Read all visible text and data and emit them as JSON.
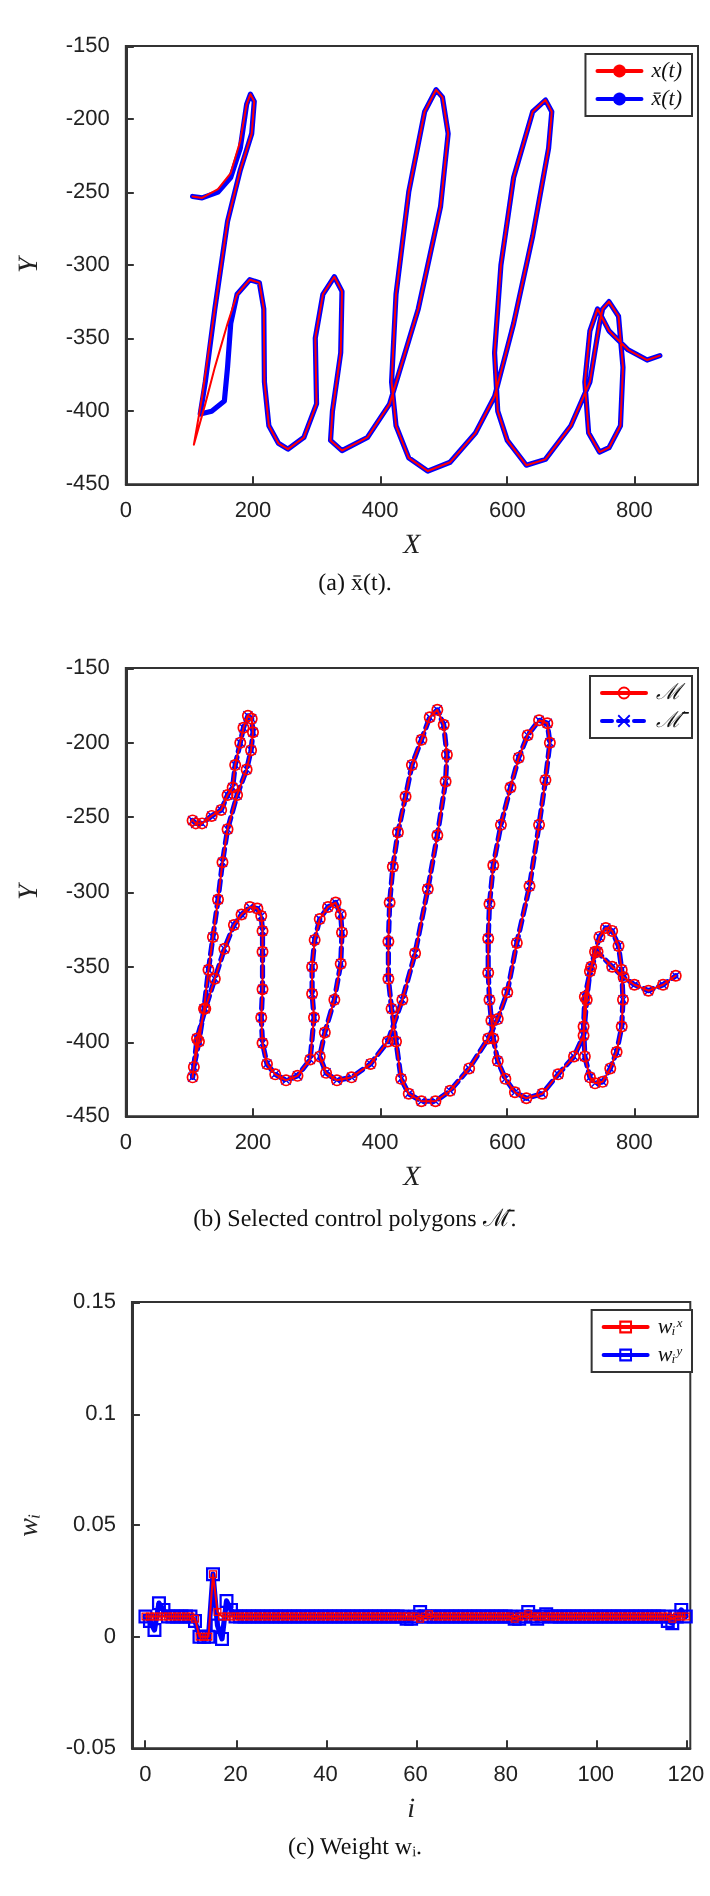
{
  "chart_data": [
    {
      "type": "line",
      "xlabel": "X",
      "ylabel": "Y",
      "annotations": [
        "(a) x̄(t)."
      ],
      "xlim": [
        0,
        900
      ],
      "xticks": [
        0,
        200,
        400,
        600,
        800
      ],
      "ylim": [
        -450,
        -150
      ],
      "yticks": [
        -450,
        -400,
        -350,
        -300,
        -250,
        -200,
        -150
      ],
      "grid": false,
      "legend": "top right",
      "marker": "none",
      "line_style": "solid",
      "series": [
        {
          "name": "x(t)",
          "color": "#ff0000",
          "x": [
            105,
            120,
            145,
            165,
            180,
            190,
            196,
            202,
            198,
            180,
            160,
            140,
            120,
            107,
            125,
            140,
            160,
            175,
            195,
            210,
            217,
            218,
            225,
            240,
            255,
            280,
            300,
            298,
            310,
            328,
            340,
            338,
            325,
            322,
            340,
            380,
            415,
            460,
            495,
            507,
            498,
            488,
            470,
            445,
            425,
            418,
            425,
            445,
            475,
            510,
            550,
            580,
            610,
            640,
            665,
            670,
            660,
            640,
            610,
            590,
            580,
            585,
            600,
            630,
            660,
            700,
            730,
            745,
            750,
            760,
            775,
            782,
            778,
            760,
            745,
            728,
            722,
            730,
            742,
            760,
            790,
            820,
            840
          ],
          "values": [
            -253,
            -254,
            -248,
            -237,
            -215,
            -190,
            -183,
            -188,
            -210,
            -235,
            -270,
            -330,
            -390,
            -423,
            -395,
            -370,
            -340,
            -320,
            -310,
            -312,
            -330,
            -380,
            -410,
            -422,
            -426,
            -418,
            -395,
            -350,
            -320,
            -308,
            -318,
            -360,
            -400,
            -420,
            -427,
            -418,
            -395,
            -330,
            -260,
            -210,
            -185,
            -180,
            -195,
            -250,
            -320,
            -380,
            -410,
            -432,
            -441,
            -435,
            -415,
            -390,
            -340,
            -280,
            -220,
            -195,
            -187,
            -195,
            -240,
            -300,
            -360,
            -400,
            -420,
            -437,
            -433,
            -410,
            -380,
            -340,
            -330,
            -325,
            -335,
            -370,
            -410,
            -425,
            -428,
            -415,
            -380,
            -345,
            -330,
            -345,
            -358,
            -365,
            -362
          ]
        },
        {
          "name": "x̄(t)",
          "color": "#0000ff",
          "x": [
            105,
            120,
            145,
            165,
            180,
            190,
            196,
            202,
            198,
            180,
            160,
            140,
            125,
            117,
            135,
            155,
            160,
            165,
            175,
            195,
            210,
            217,
            218,
            225,
            240,
            255,
            280,
            300,
            298,
            310,
            328,
            340,
            338,
            325,
            322,
            340,
            380,
            415,
            460,
            495,
            507,
            498,
            488,
            470,
            445,
            425,
            418,
            425,
            445,
            475,
            510,
            550,
            580,
            610,
            640,
            665,
            670,
            660,
            640,
            610,
            590,
            580,
            585,
            600,
            630,
            660,
            700,
            730,
            745,
            750,
            760,
            775,
            782,
            778,
            760,
            745,
            728,
            722,
            730,
            742,
            760,
            790,
            820,
            840
          ],
          "values": [
            -253,
            -254,
            -250,
            -240,
            -220,
            -190,
            -183,
            -188,
            -210,
            -235,
            -270,
            -330,
            -380,
            -402,
            -400,
            -393,
            -370,
            -340,
            -320,
            -310,
            -312,
            -330,
            -380,
            -410,
            -422,
            -426,
            -418,
            -395,
            -350,
            -320,
            -308,
            -318,
            -360,
            -400,
            -420,
            -427,
            -418,
            -395,
            -330,
            -260,
            -210,
            -185,
            -180,
            -195,
            -250,
            -320,
            -380,
            -410,
            -432,
            -441,
            -435,
            -415,
            -390,
            -340,
            -280,
            -220,
            -195,
            -187,
            -195,
            -240,
            -300,
            -360,
            -400,
            -420,
            -437,
            -433,
            -410,
            -380,
            -340,
            -330,
            -325,
            -335,
            -370,
            -410,
            -425,
            -428,
            -415,
            -380,
            -345,
            -330,
            -345,
            -358,
            -365,
            -362
          ]
        }
      ]
    },
    {
      "type": "line",
      "xlabel": "X",
      "ylabel": "Y",
      "annotations": [
        "(b) Selected control polygons ℳ̄."
      ],
      "xlim": [
        0,
        900
      ],
      "xticks": [
        0,
        200,
        400,
        600,
        800
      ],
      "ylim": [
        -450,
        -150
      ],
      "yticks": [
        -450,
        -400,
        -350,
        -300,
        -250,
        -200,
        -150
      ],
      "grid": false,
      "legend": "top right",
      "series": [
        {
          "name": "ℳ",
          "color": "#ff0000",
          "marker": "circle",
          "line_style": "solid",
          "x": [
            105,
            110,
            120,
            135,
            150,
            160,
            168,
            172,
            180,
            185,
            192,
            198,
            200,
            197,
            190,
            175,
            160,
            152,
            145,
            137,
            130,
            123,
            115,
            107,
            105,
            112,
            125,
            140,
            155,
            170,
            182,
            195,
            207,
            213,
            215,
            215,
            215,
            213,
            215,
            222,
            235,
            252,
            270,
            290,
            296,
            293,
            293,
            297,
            305,
            318,
            330,
            338,
            340,
            338,
            328,
            313,
            305,
            315,
            332,
            355,
            385,
            412,
            435,
            455,
            475,
            490,
            503,
            505,
            500,
            490,
            478,
            465,
            450,
            440,
            428,
            420,
            415,
            413,
            413,
            418,
            425,
            433,
            445,
            465,
            487,
            510,
            540,
            570,
            585,
            600,
            615,
            635,
            650,
            660,
            667,
            663,
            650,
            632,
            618,
            605,
            590,
            578,
            572,
            570,
            570,
            572,
            575,
            578,
            585,
            597,
            612,
            630,
            655,
            680,
            705,
            720,
            725,
            730,
            738,
            745,
            755,
            765,
            775,
            780,
            782,
            780,
            772,
            762,
            750,
            738,
            730,
            722,
            720,
            722,
            732,
            742,
            765,
            783,
            800,
            822,
            845,
            865
          ],
          "values": [
            -252,
            -254,
            -254,
            -249,
            -245,
            -235,
            -230,
            -215,
            -200,
            -190,
            -182,
            -184,
            -193,
            -205,
            -218,
            -235,
            -258,
            -280,
            -305,
            -330,
            -352,
            -378,
            -400,
            -417,
            -424,
            -398,
            -378,
            -358,
            -338,
            -322,
            -315,
            -310,
            -311,
            -316,
            -326,
            -340,
            -365,
            -384,
            -401,
            -415,
            -422,
            -426,
            -423,
            -412,
            -384,
            -368,
            -350,
            -332,
            -318,
            -310,
            -307,
            -315,
            -327,
            -348,
            -372,
            -394,
            -410,
            -421,
            -426,
            -424,
            -415,
            -400,
            -372,
            -341,
            -298,
            -262,
            -226,
            -208,
            -188,
            -178,
            -183,
            -198,
            -215,
            -236,
            -260,
            -283,
            -307,
            -333,
            -358,
            -378,
            -400,
            -425,
            -435,
            -440,
            -440,
            -433,
            -418,
            -398,
            -385,
            -367,
            -334,
            -296,
            -255,
            -225,
            -200,
            -187,
            -185,
            -195,
            -210,
            -230,
            -255,
            -282,
            -308,
            -331,
            -354,
            -372,
            -386,
            -398,
            -413,
            -425,
            -434,
            -438,
            -435,
            -422,
            -410,
            -396,
            -372,
            -353,
            -340,
            -330,
            -324,
            -326,
            -336,
            -352,
            -372,
            -390,
            -407,
            -418,
            -427,
            -428,
            -424,
            -410,
            -390,
            -370,
            -350,
            -340,
            -350,
            -357,
            -362,
            -366,
            -362,
            -356
          ]
        },
        {
          "name": "ℳ̄",
          "color": "#0000ff",
          "marker": "cross",
          "line_style": "dashed",
          "x": [
            105,
            110,
            120,
            135,
            150,
            160,
            168,
            172,
            180,
            185,
            192,
            198,
            200,
            197,
            190,
            175,
            160,
            152,
            145,
            137,
            130,
            123,
            115,
            107,
            105,
            112,
            125,
            140,
            155,
            170,
            182,
            195,
            207,
            213,
            215,
            215,
            215,
            213,
            215,
            222,
            235,
            252,
            270,
            290,
            296,
            293,
            293,
            297,
            305,
            318,
            330,
            338,
            340,
            338,
            328,
            313,
            305,
            315,
            332,
            355,
            385,
            412,
            435,
            455,
            475,
            490,
            503,
            505,
            500,
            490,
            478,
            465,
            450,
            440,
            428,
            420,
            415,
            413,
            413,
            418,
            425,
            433,
            445,
            465,
            487,
            510,
            540,
            570,
            585,
            600,
            615,
            635,
            650,
            660,
            667,
            663,
            650,
            632,
            618,
            605,
            590,
            578,
            572,
            570,
            570,
            572,
            575,
            578,
            585,
            597,
            612,
            630,
            655,
            680,
            705,
            720,
            725,
            730,
            738,
            745,
            755,
            765,
            775,
            780,
            782,
            780,
            772,
            762,
            750,
            738,
            730,
            722,
            720,
            722,
            732,
            742,
            765,
            783,
            800,
            822,
            845,
            865
          ],
          "values": [
            -252,
            -254,
            -254,
            -249,
            -245,
            -235,
            -230,
            -215,
            -200,
            -190,
            -182,
            -184,
            -193,
            -205,
            -218,
            -235,
            -258,
            -280,
            -305,
            -330,
            -352,
            -378,
            -400,
            -417,
            -424,
            -398,
            -378,
            -358,
            -338,
            -322,
            -315,
            -310,
            -311,
            -316,
            -326,
            -340,
            -365,
            -384,
            -401,
            -415,
            -422,
            -426,
            -423,
            -412,
            -384,
            -368,
            -350,
            -332,
            -318,
            -310,
            -307,
            -315,
            -327,
            -348,
            -372,
            -394,
            -410,
            -421,
            -426,
            -424,
            -415,
            -400,
            -372,
            -341,
            -298,
            -262,
            -226,
            -208,
            -188,
            -178,
            -183,
            -198,
            -215,
            -236,
            -260,
            -283,
            -307,
            -333,
            -358,
            -378,
            -400,
            -425,
            -435,
            -440,
            -440,
            -433,
            -418,
            -398,
            -385,
            -367,
            -334,
            -296,
            -255,
            -225,
            -200,
            -187,
            -185,
            -195,
            -210,
            -230,
            -255,
            -282,
            -308,
            -331,
            -354,
            -372,
            -386,
            -398,
            -413,
            -425,
            -434,
            -438,
            -435,
            -422,
            -410,
            -396,
            -372,
            -353,
            -340,
            -330,
            -324,
            -326,
            -336,
            -352,
            -372,
            -390,
            -407,
            -418,
            -427,
            -428,
            -424,
            -410,
            -390,
            -370,
            -350,
            -340,
            -350,
            -357,
            -362,
            -366,
            -362,
            -356
          ]
        }
      ]
    },
    {
      "type": "line",
      "xlabel": "i",
      "ylabel": "wᵢ",
      "annotations": [
        "(c) Weight wᵢ."
      ],
      "xlim": [
        -3,
        121
      ],
      "xticks": [
        0,
        20,
        40,
        60,
        80,
        100,
        120
      ],
      "ylim": [
        -0.05,
        0.15
      ],
      "yticks": [
        -0.05,
        0,
        0.05,
        0.1,
        0.15
      ],
      "grid": false,
      "legend": "top right",
      "marker": "square",
      "line_style": "solid",
      "x": [
        0,
        1,
        2,
        3,
        4,
        5,
        6,
        7,
        8,
        9,
        10,
        11,
        12,
        13,
        14,
        15,
        16,
        17,
        18,
        19,
        20,
        21,
        22,
        23,
        24,
        25,
        26,
        27,
        28,
        29,
        30,
        31,
        32,
        33,
        34,
        35,
        36,
        37,
        38,
        39,
        40,
        41,
        42,
        43,
        44,
        45,
        46,
        47,
        48,
        49,
        50,
        51,
        52,
        53,
        54,
        55,
        56,
        57,
        58,
        59,
        60,
        61,
        62,
        63,
        64,
        65,
        66,
        67,
        68,
        69,
        70,
        71,
        72,
        73,
        74,
        75,
        76,
        77,
        78,
        79,
        80,
        81,
        82,
        83,
        84,
        85,
        86,
        87,
        88,
        89,
        90,
        91,
        92,
        93,
        94,
        95,
        96,
        97,
        98,
        99,
        100,
        101,
        102,
        103,
        104,
        105,
        106,
        107,
        108,
        109,
        110,
        111,
        112,
        113,
        114,
        115,
        116,
        117,
        118,
        119,
        120
      ],
      "series": [
        {
          "name": "wᵢˣ",
          "color": "#ff0000",
          "values": [
            0.009,
            0.009,
            0.009,
            0.009,
            0.009,
            0.009,
            0.009,
            0.009,
            0.009,
            0.009,
            0.009,
            0.008,
            0,
            0,
            0,
            0.028,
            0.011,
            0.009,
            0.009,
            0.009,
            0.009,
            0.009,
            0.009,
            0.009,
            0.009,
            0.009,
            0.009,
            0.009,
            0.009,
            0.009,
            0.009,
            0.009,
            0.009,
            0.009,
            0.009,
            0.009,
            0.009,
            0.009,
            0.009,
            0.009,
            0.009,
            0.009,
            0.009,
            0.009,
            0.009,
            0.009,
            0.009,
            0.009,
            0.009,
            0.009,
            0.009,
            0.009,
            0.009,
            0.009,
            0.009,
            0.009,
            0.009,
            0.009,
            0.009,
            0.009,
            0.009,
            0.008,
            0.009,
            0.01,
            0.009,
            0.009,
            0.009,
            0.009,
            0.009,
            0.009,
            0.009,
            0.009,
            0.009,
            0.009,
            0.009,
            0.009,
            0.009,
            0.009,
            0.009,
            0.009,
            0.009,
            0.009,
            0.008,
            0.009,
            0.009,
            0.01,
            0.009,
            0.009,
            0.009,
            0.009,
            0.009,
            0.009,
            0.009,
            0.009,
            0.009,
            0.009,
            0.009,
            0.009,
            0.009,
            0.009,
            0.009,
            0.009,
            0.009,
            0.009,
            0.009,
            0.009,
            0.009,
            0.009,
            0.009,
            0.009,
            0.009,
            0.009,
            0.009,
            0.009,
            0.009,
            0.009,
            0.009,
            0.008,
            0.009,
            0.009,
            0.009
          ]
        },
        {
          "name": "wᵢʸ",
          "color": "#0000ff",
          "values": [
            0.009,
            0.007,
            0.003,
            0.015,
            0.012,
            0.009,
            0.009,
            0.009,
            0.009,
            0.009,
            0.009,
            0.007,
            0,
            0,
            0,
            0.028,
            0.005,
            -0.001,
            0.016,
            0.012,
            0.009,
            0.009,
            0.009,
            0.009,
            0.009,
            0.009,
            0.009,
            0.009,
            0.009,
            0.009,
            0.009,
            0.009,
            0.009,
            0.009,
            0.009,
            0.009,
            0.009,
            0.009,
            0.009,
            0.009,
            0.009,
            0.009,
            0.009,
            0.009,
            0.009,
            0.009,
            0.009,
            0.009,
            0.009,
            0.009,
            0.009,
            0.009,
            0.009,
            0.009,
            0.009,
            0.009,
            0.009,
            0.009,
            0.008,
            0.008,
            0.009,
            0.011,
            0.009,
            0.009,
            0.009,
            0.009,
            0.009,
            0.009,
            0.009,
            0.009,
            0.009,
            0.009,
            0.009,
            0.009,
            0.009,
            0.009,
            0.009,
            0.009,
            0.009,
            0.009,
            0.009,
            0.009,
            0.008,
            0.008,
            0.009,
            0.011,
            0.009,
            0.008,
            0.009,
            0.01,
            0.009,
            0.009,
            0.009,
            0.009,
            0.009,
            0.009,
            0.009,
            0.009,
            0.009,
            0.009,
            0.009,
            0.009,
            0.009,
            0.009,
            0.009,
            0.009,
            0.009,
            0.009,
            0.009,
            0.009,
            0.009,
            0.009,
            0.009,
            0.009,
            0.009,
            0.009,
            0.007,
            0.006,
            0.009,
            0.012,
            0.009
          ]
        }
      ]
    }
  ]
}
